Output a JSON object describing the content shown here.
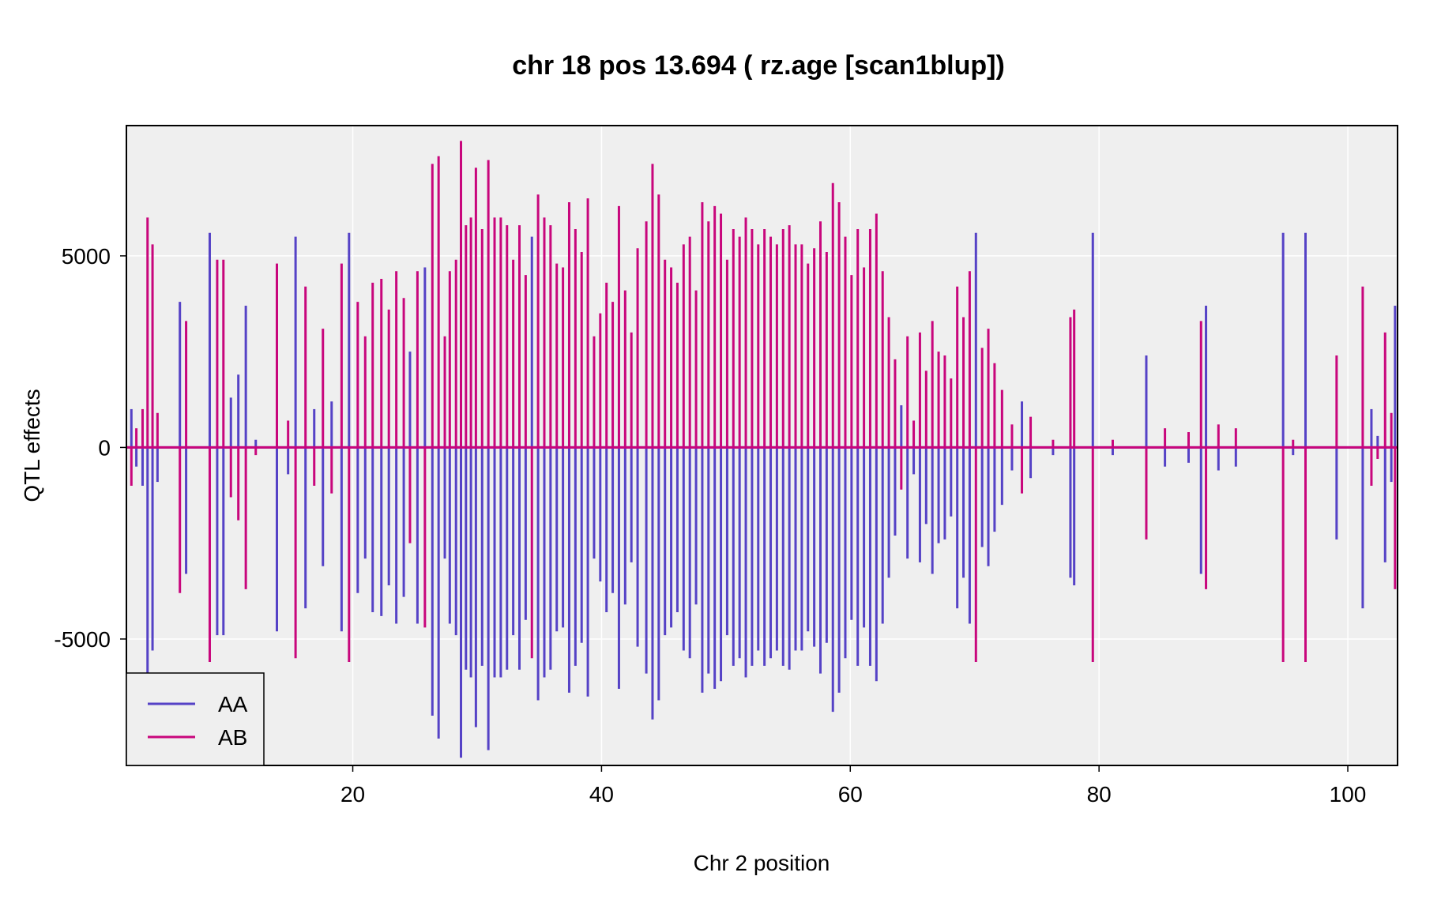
{
  "chart_data": {
    "type": "line",
    "title": "chr 18 pos 13.694 ( rz.age  [scan1blup])",
    "xlabel": "Chr 2 position",
    "ylabel": "QTL effects",
    "xlim": [
      1.8,
      104.0
    ],
    "ylim": [
      -8300,
      8400
    ],
    "xticks": [
      20,
      40,
      60,
      80,
      100
    ],
    "xtick_labels": [
      "20",
      "40",
      "60",
      "80",
      "100"
    ],
    "yticks": [
      -5000,
      0,
      5000
    ],
    "ytick_labels": [
      "-5000",
      "0",
      "5000"
    ],
    "grid": true,
    "legend_position": "bottom-left",
    "series": [
      {
        "name": "AA",
        "color": "#5542C6",
        "x": [
          2.2,
          2.6,
          3.1,
          3.5,
          3.9,
          4.3,
          5.2,
          6.1,
          6.6,
          7.3,
          8.5,
          9.1,
          9.6,
          10.2,
          10.8,
          11.4,
          12.2,
          13.3,
          13.9,
          14.8,
          15.4,
          16.2,
          16.9,
          17.6,
          18.3,
          19.1,
          19.7,
          20.4,
          21.0,
          21.6,
          22.3,
          22.9,
          23.5,
          24.1,
          24.6,
          25.2,
          25.8,
          26.4,
          26.9,
          27.4,
          27.8,
          28.3,
          28.7,
          29.1,
          29.5,
          29.9,
          30.4,
          30.9,
          31.4,
          31.9,
          32.4,
          32.9,
          33.4,
          33.9,
          34.4,
          34.9,
          35.4,
          35.9,
          36.4,
          36.9,
          37.4,
          37.9,
          38.4,
          38.9,
          39.4,
          39.9,
          40.4,
          40.9,
          41.4,
          41.9,
          42.4,
          42.9,
          43.6,
          44.1,
          44.6,
          45.1,
          45.6,
          46.1,
          46.6,
          47.1,
          47.6,
          48.1,
          48.6,
          49.1,
          49.6,
          50.1,
          50.6,
          51.1,
          51.6,
          52.1,
          52.6,
          53.1,
          53.6,
          54.1,
          54.6,
          55.1,
          55.6,
          56.1,
          56.6,
          57.1,
          57.6,
          58.1,
          58.6,
          59.1,
          59.6,
          60.1,
          60.6,
          61.1,
          61.6,
          62.1,
          62.6,
          63.1,
          63.6,
          64.1,
          64.6,
          65.1,
          65.6,
          66.1,
          66.6,
          67.1,
          67.6,
          68.1,
          68.6,
          69.1,
          69.6,
          70.1,
          70.6,
          71.1,
          71.6,
          72.2,
          73.0,
          73.8,
          74.5,
          76.3,
          76.8,
          77.7,
          78.0,
          79.5,
          81.1,
          81.8,
          83.8,
          85.3,
          86.8,
          87.2,
          88.2,
          88.6,
          89.6,
          91.0,
          92.5,
          93.3,
          93.7,
          94.8,
          95.6,
          96.6,
          97.7,
          99.1,
          100.7,
          101.2,
          101.9,
          102.4,
          103.0,
          103.5,
          103.8
        ],
        "y": [
          1000,
          -500,
          -1000,
          -6200,
          -5300,
          -900,
          0,
          3800,
          -3300,
          0,
          5600,
          -4900,
          -4900,
          1300,
          1900,
          3700,
          200,
          0,
          -4800,
          -700,
          5500,
          -4200,
          1000,
          -3100,
          1200,
          -4800,
          5600,
          -3800,
          -2900,
          -4300,
          -4400,
          -3600,
          -4600,
          -3900,
          2500,
          -4600,
          4700,
          -7000,
          -7600,
          -2900,
          -4600,
          -4900,
          -8100,
          -5800,
          -6000,
          -7300,
          -5700,
          -7900,
          -6000,
          -6000,
          -5800,
          -4900,
          -5800,
          -4500,
          5500,
          -6600,
          -6000,
          -5800,
          -4800,
          -4700,
          -6400,
          -5700,
          -5100,
          -6500,
          -2900,
          -3500,
          -4300,
          -3800,
          -6300,
          -4100,
          -3000,
          -5200,
          -5900,
          -7100,
          -6600,
          -4900,
          -4700,
          -4300,
          -5300,
          -5500,
          -4100,
          -6400,
          -5900,
          -6300,
          -6100,
          -4900,
          -5700,
          -5500,
          -6000,
          -5700,
          -5300,
          -5700,
          -5500,
          -5300,
          -5700,
          -5800,
          -5300,
          -5300,
          -4800,
          -5200,
          -5900,
          -5100,
          -6900,
          -6400,
          -5500,
          -4500,
          -5700,
          -4700,
          -5700,
          -6100,
          -4600,
          -3400,
          -2300,
          1100,
          -2900,
          -700,
          -3000,
          -2000,
          -3300,
          -2500,
          -2400,
          -1800,
          -4200,
          -3400,
          -4600,
          5600,
          -2600,
          -3100,
          -2200,
          -1500,
          -600,
          1200,
          -800,
          -200,
          0,
          -3400,
          -3600,
          5600,
          -200,
          0,
          2400,
          -500,
          0,
          -400,
          -3300,
          3700,
          -600,
          -500,
          0,
          0,
          0,
          5600,
          -200,
          5600,
          0,
          -2400,
          0,
          -4200,
          1000,
          300,
          -3000,
          -900,
          3700
        ],
        "y2": [
          0,
          0,
          0,
          0,
          0,
          0,
          0,
          0,
          0,
          0,
          0,
          0,
          0,
          0,
          0,
          0,
          0,
          0,
          0,
          0,
          0,
          0,
          0,
          0,
          0,
          0,
          0,
          0,
          0,
          0,
          0,
          0,
          0,
          0,
          0,
          0,
          0,
          0,
          0,
          0,
          0,
          0,
          0,
          0,
          0,
          0,
          0,
          0,
          0,
          0,
          0,
          0,
          0,
          0,
          0,
          0,
          0,
          0,
          0,
          0,
          0,
          0,
          0,
          0,
          0,
          0,
          0,
          0,
          0,
          0,
          0,
          0,
          0,
          0,
          0,
          0,
          0,
          0,
          0,
          0,
          0,
          0,
          0,
          0,
          0,
          0,
          0,
          0,
          0,
          0,
          0,
          0,
          0,
          0,
          0,
          0,
          0,
          0,
          0,
          0,
          0,
          0,
          0,
          0,
          0,
          0,
          0,
          0,
          0,
          0,
          0,
          0,
          0,
          0,
          0,
          0,
          0,
          0,
          0,
          0,
          0,
          0,
          0,
          0,
          0,
          0,
          0,
          0,
          0,
          0,
          0,
          0,
          0,
          0,
          0,
          0,
          0,
          0,
          0,
          0,
          0,
          0,
          0,
          0,
          0,
          0,
          0,
          0,
          0,
          0,
          0,
          0,
          0,
          0,
          0,
          0,
          0
        ]
      },
      {
        "name": "AB",
        "color": "#C8067C",
        "x": [
          2.2,
          2.6,
          3.1,
          3.5,
          3.9,
          4.3,
          5.2,
          6.1,
          6.6,
          7.3,
          8.5,
          9.1,
          9.6,
          10.2,
          10.8,
          11.4,
          12.2,
          13.3,
          13.9,
          14.8,
          15.4,
          16.2,
          16.9,
          17.6,
          18.3,
          19.1,
          19.7,
          20.4,
          21.0,
          21.6,
          22.3,
          22.9,
          23.5,
          24.1,
          24.6,
          25.2,
          25.8,
          26.4,
          26.9,
          27.4,
          27.8,
          28.3,
          28.7,
          29.1,
          29.5,
          29.9,
          30.4,
          30.9,
          31.4,
          31.9,
          32.4,
          32.9,
          33.4,
          33.9,
          34.4,
          34.9,
          35.4,
          35.9,
          36.4,
          36.9,
          37.4,
          37.9,
          38.4,
          38.9,
          39.4,
          39.9,
          40.4,
          40.9,
          41.4,
          41.9,
          42.4,
          42.9,
          43.6,
          44.1,
          44.6,
          45.1,
          45.6,
          46.1,
          46.6,
          47.1,
          47.6,
          48.1,
          48.6,
          49.1,
          49.6,
          50.1,
          50.6,
          51.1,
          51.6,
          52.1,
          52.6,
          53.1,
          53.6,
          54.1,
          54.6,
          55.1,
          55.6,
          56.1,
          56.6,
          57.1,
          57.6,
          58.1,
          58.6,
          59.1,
          59.6,
          60.1,
          60.6,
          61.1,
          61.6,
          62.1,
          62.6,
          63.1,
          63.6,
          64.1,
          64.6,
          65.1,
          65.6,
          66.1,
          66.6,
          67.1,
          67.6,
          68.1,
          68.6,
          69.1,
          69.6,
          70.1,
          70.6,
          71.1,
          71.6,
          72.2,
          73.0,
          73.8,
          74.5,
          76.3,
          76.8,
          77.7,
          78.0,
          79.5,
          81.1,
          81.8,
          83.8,
          85.3,
          86.8,
          87.2,
          88.2,
          88.6,
          89.6,
          91.0,
          92.5,
          93.3,
          93.7,
          94.8,
          95.6,
          96.6,
          97.7,
          99.1,
          100.7,
          101.2,
          101.9,
          102.4,
          103.0,
          103.5,
          103.8
        ],
        "y": [
          -1000,
          500,
          1000,
          6000,
          5300,
          900,
          0,
          -3800,
          3300,
          0,
          -5600,
          4900,
          4900,
          -1300,
          -1900,
          -3700,
          -200,
          0,
          4800,
          700,
          -5500,
          4200,
          -1000,
          3100,
          -1200,
          4800,
          -5600,
          3800,
          2900,
          4300,
          4400,
          3600,
          4600,
          3900,
          -2500,
          4600,
          -4700,
          7400,
          7600,
          2900,
          4600,
          4900,
          8000,
          5800,
          6000,
          7300,
          5700,
          7500,
          6000,
          6000,
          5800,
          4900,
          5800,
          4500,
          -5500,
          6600,
          6000,
          5800,
          4800,
          4700,
          6400,
          5700,
          5100,
          6500,
          2900,
          3500,
          4300,
          3800,
          6300,
          4100,
          3000,
          5200,
          5900,
          7400,
          6600,
          4900,
          4700,
          4300,
          5300,
          5500,
          4100,
          6400,
          5900,
          6300,
          6100,
          4900,
          5700,
          5500,
          6000,
          5700,
          5300,
          5700,
          5500,
          5300,
          5700,
          5800,
          5300,
          5300,
          4800,
          5200,
          5900,
          5100,
          6900,
          6400,
          5500,
          4500,
          5700,
          4700,
          5700,
          6100,
          4600,
          3400,
          2300,
          -1100,
          2900,
          700,
          3000,
          2000,
          3300,
          2500,
          2400,
          1800,
          4200,
          3400,
          4600,
          -5600,
          2600,
          3100,
          2200,
          1500,
          600,
          -1200,
          800,
          200,
          0,
          3400,
          3600,
          -5600,
          200,
          0,
          -2400,
          500,
          0,
          400,
          3300,
          -3700,
          600,
          500,
          0,
          0,
          0,
          -5600,
          200,
          -5600,
          0,
          2400,
          0,
          4200,
          -1000,
          -300,
          3000,
          900,
          -3700
        ]
      }
    ]
  }
}
